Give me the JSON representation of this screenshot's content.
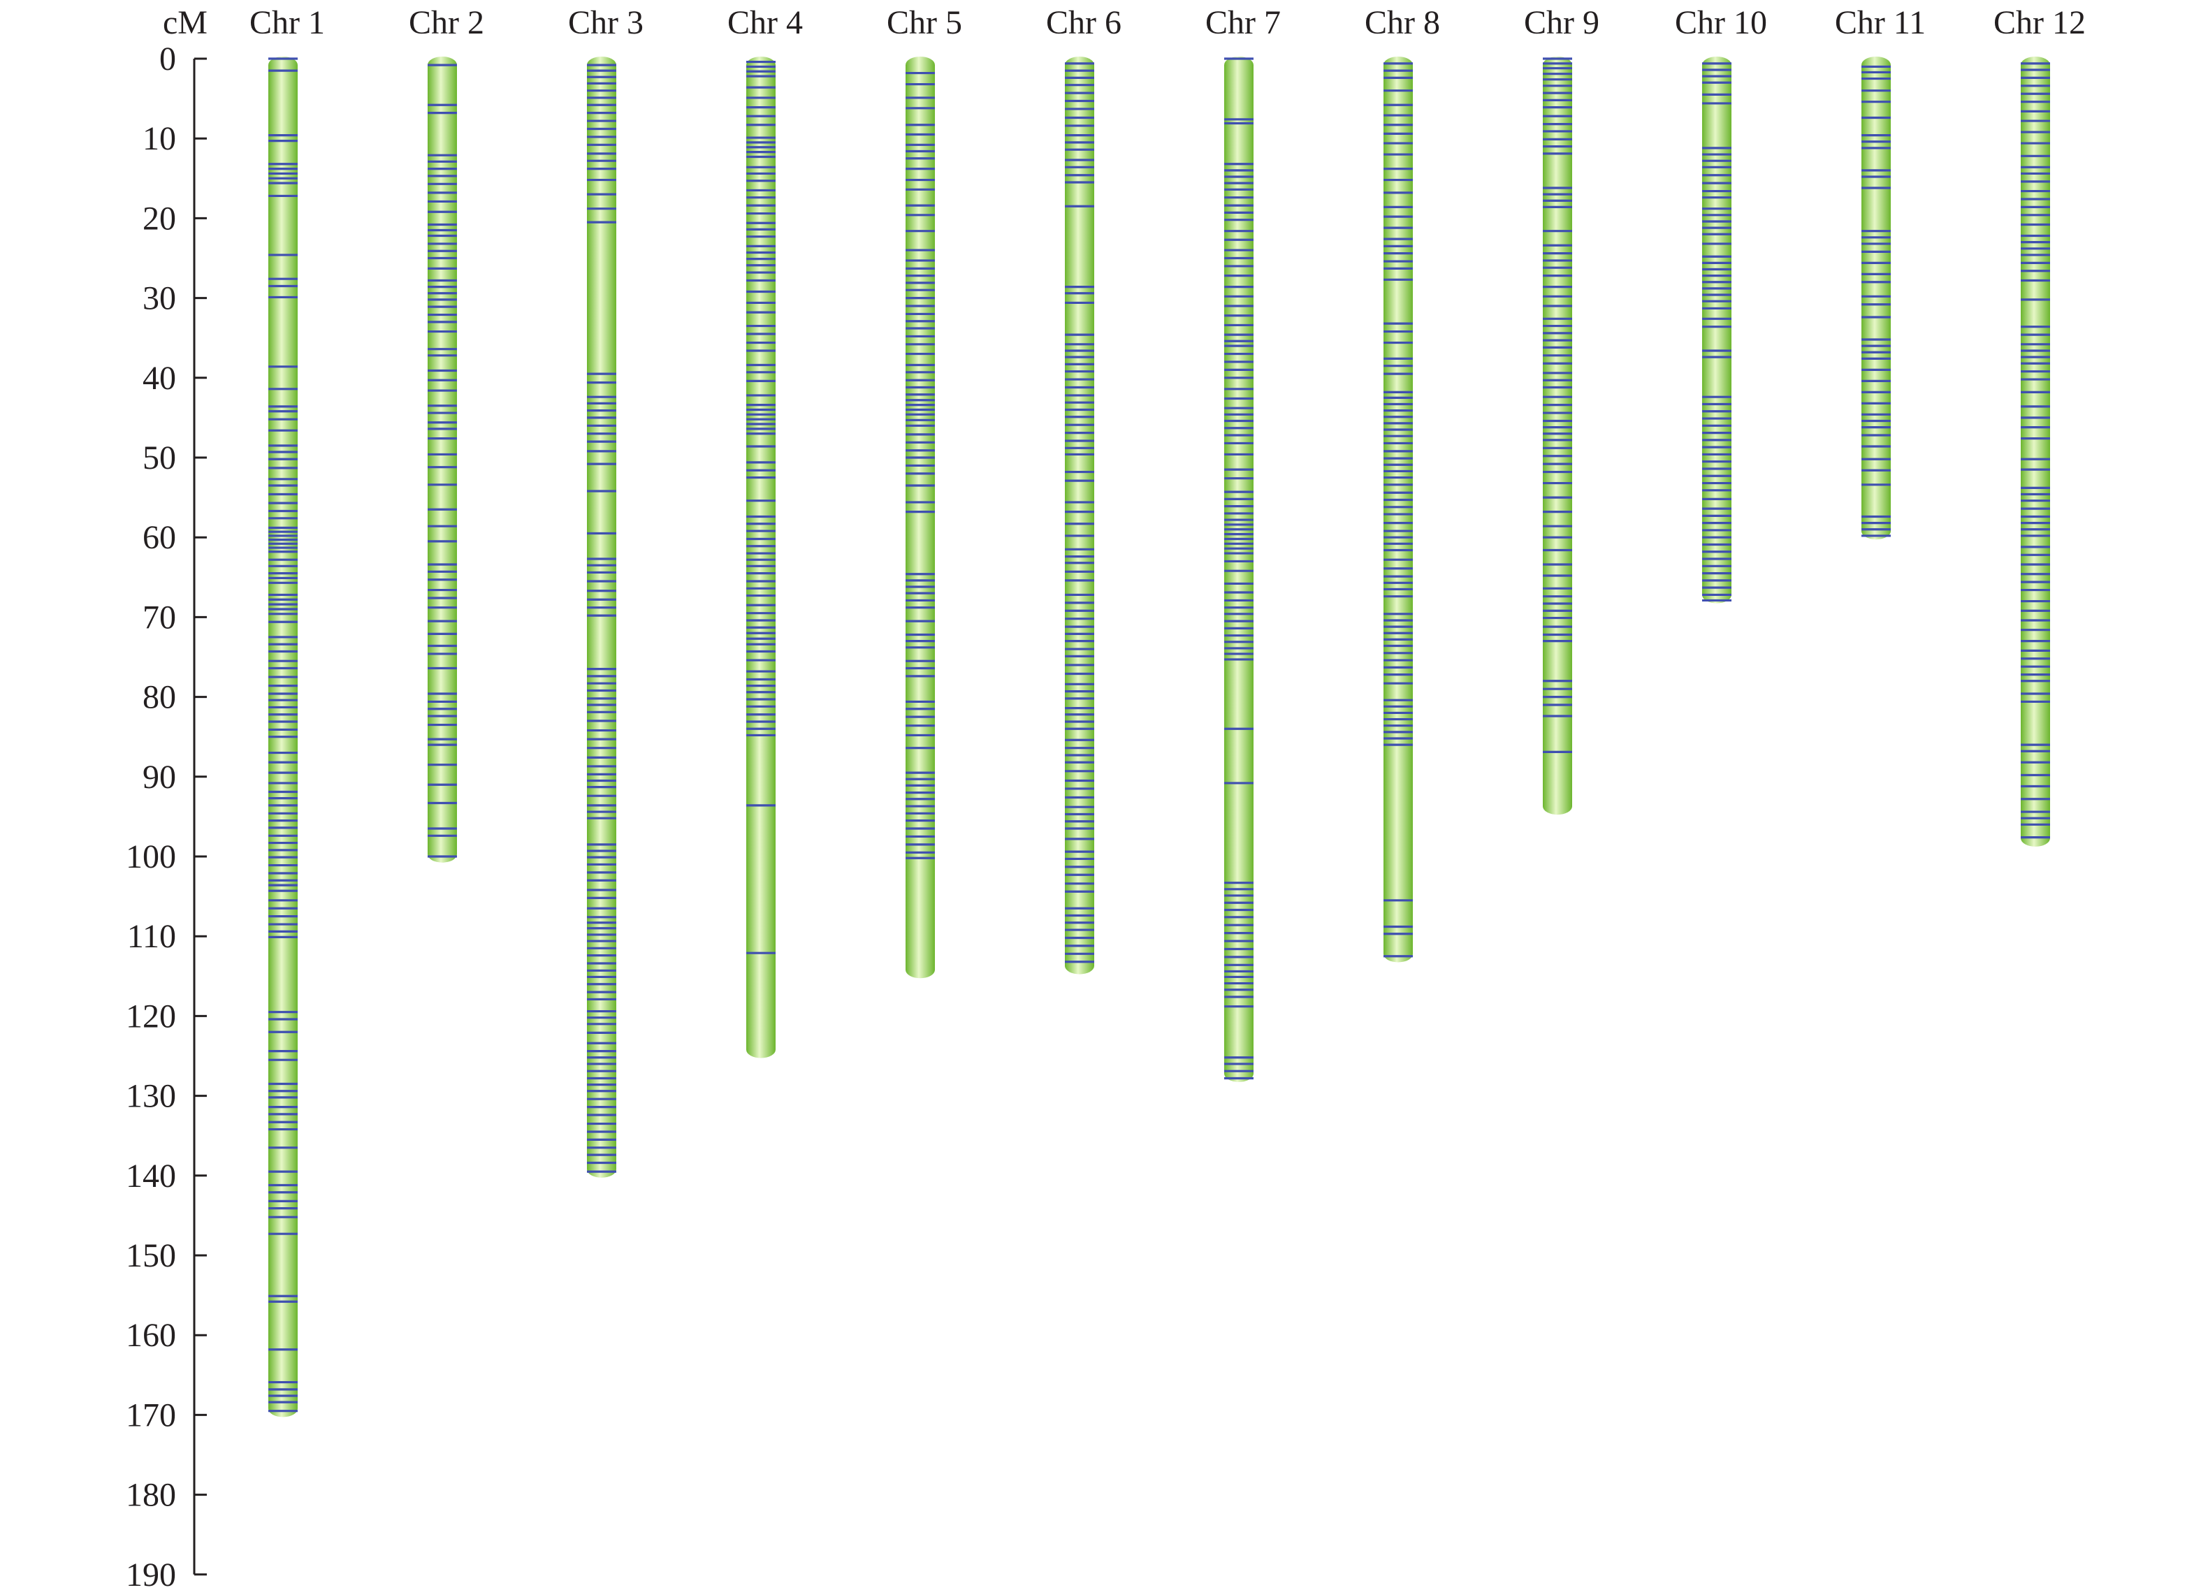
{
  "chart_data": {
    "type": "linkage-map",
    "axis": {
      "unit_label": "cM",
      "range": [
        0,
        190
      ],
      "ticks": [
        0,
        10,
        20,
        30,
        40,
        50,
        60,
        70,
        80,
        90,
        100,
        110,
        120,
        130,
        140,
        150,
        160,
        170,
        180,
        190
      ]
    },
    "colors": {
      "chromosome": "#8fd14f",
      "chromosome_edge": "#6cb52e",
      "chromosome_highlight": "#e6f7c6",
      "marker": "#3f4fb0",
      "axis": "#231f20"
    },
    "chromosomes": [
      {
        "name": "Chr 1",
        "length": 170,
        "markers": [
          0,
          1.5,
          9.6,
          10.3,
          13.2,
          13.8,
          14.4,
          15.0,
          15.6,
          17.2,
          24.6,
          27.6,
          28.5,
          29.9,
          38.6,
          41.4,
          43.6,
          44.2,
          45.2,
          46.6,
          48.5,
          49.3,
          50.2,
          51.3,
          52.7,
          53.5,
          54.6,
          55.7,
          56.7,
          57.6,
          58.8,
          59.3,
          59.8,
          60.3,
          60.8,
          61.3,
          61.8,
          62.8,
          63.6,
          64.5,
          65.1,
          65.7,
          67.2,
          67.8,
          68.4,
          69.0,
          69.6,
          70.6,
          72.5,
          73.4,
          74.3,
          75.5,
          76.4,
          77.5,
          78.6,
          79.6,
          80.4,
          81.3,
          82.2,
          83.1,
          84.1,
          85.0,
          87.0,
          88.2,
          89.5,
          90.8,
          91.9,
          92.7,
          93.6,
          94.6,
          95.5,
          96.4,
          97.4,
          98.3,
          99.2,
          100.1,
          101.1,
          102.1,
          103.0,
          103.6,
          104.3,
          105.5,
          106.5,
          107.5,
          108.5,
          109.4,
          110.1,
          119.5,
          120.4,
          122.0,
          124.4,
          125.5,
          128.5,
          129.4,
          130.2,
          131.4,
          132.3,
          133.3,
          134.2,
          136.5,
          139.5,
          141.2,
          142.1,
          143.2,
          144.1,
          145.2,
          147.3,
          155.1,
          155.8,
          161.8,
          165.9,
          166.8,
          167.6,
          168.4,
          169.5
        ]
      },
      {
        "name": "Chr 2",
        "length": 100.5,
        "markers": [
          0.8,
          5.8,
          6.8,
          12.1,
          12.9,
          13.8,
          14.7,
          15.7,
          16.8,
          17.9,
          19.2,
          20.8,
          21.5,
          22.2,
          23.2,
          24.1,
          25.0,
          26.3,
          27.8,
          28.6,
          29.4,
          30.2,
          31.1,
          32.1,
          33.0,
          34.2,
          36.4,
          37.2,
          39.1,
          40.3,
          41.6,
          43.5,
          44.4,
          45.6,
          46.4,
          47.6,
          49.6,
          51.2,
          53.4,
          56.5,
          58.6,
          60.5,
          63.4,
          64.3,
          65.3,
          66.6,
          67.6,
          68.8,
          70.5,
          72.1,
          73.6,
          74.6,
          76.4,
          79.6,
          80.6,
          81.5,
          82.4,
          83.5,
          85.3,
          86.0,
          88.5,
          91.0,
          93.3,
          96.5,
          97.4,
          100.0
        ]
      },
      {
        "name": "Chr 3",
        "length": 140,
        "markers": [
          0.8,
          1.5,
          2.3,
          3.1,
          4.0,
          4.9,
          5.8,
          6.8,
          7.8,
          8.8,
          9.8,
          10.8,
          11.9,
          12.8,
          13.8,
          15.2,
          17.0,
          18.8,
          20.5,
          39.5,
          40.6,
          42.4,
          43.2,
          44.1,
          45.0,
          46.0,
          47.0,
          48.0,
          49.2,
          50.8,
          54.2,
          59.5,
          62.7,
          63.5,
          64.4,
          65.5,
          66.7,
          67.8,
          68.8,
          69.8,
          76.5,
          77.4,
          78.3,
          79.2,
          80.2,
          81.0,
          81.9,
          83.0,
          84.2,
          85.3,
          86.4,
          87.6,
          88.7,
          89.7,
          90.5,
          91.3,
          92.4,
          93.6,
          94.4,
          95.2,
          98.5,
          99.3,
          100.1,
          101.0,
          102.0,
          103.0,
          104.2,
          105.2,
          106.5,
          107.6,
          108.3,
          109.0,
          109.8,
          110.6,
          111.5,
          112.4,
          113.4,
          114.3,
          115.1,
          116.0,
          117.0,
          117.9,
          119.4,
          120.2,
          121.0,
          122.1,
          123.4,
          124.4,
          125.2,
          126.0,
          126.9,
          127.8,
          128.6,
          129.4,
          130.4,
          131.4,
          132.4,
          133.5,
          134.5,
          135.5,
          136.5,
          137.4,
          138.4,
          139.5
        ]
      },
      {
        "name": "Chr 4",
        "length": 125,
        "markers": [
          0.4,
          1.0,
          1.6,
          2.2,
          3.6,
          4.9,
          6.1,
          7.2,
          8.3,
          9.9,
          10.5,
          11.1,
          11.7,
          12.3,
          13.6,
          14.4,
          15.3,
          16.5,
          17.4,
          18.4,
          19.4,
          20.6,
          21.4,
          22.3,
          23.5,
          24.3,
          25.1,
          25.9,
          26.8,
          27.8,
          29.2,
          30.6,
          31.8,
          33.5,
          34.5,
          35.6,
          36.6,
          38.4,
          39.3,
          40.4,
          42.2,
          43.4,
          44.0,
          44.6,
          45.2,
          45.8,
          46.4,
          47.0,
          48.6,
          50.6,
          51.6,
          52.5,
          55.4,
          57.4,
          58.3,
          59.2,
          60.2,
          61.1,
          62.0,
          62.8,
          63.6,
          64.5,
          65.5,
          66.4,
          67.3,
          68.5,
          69.5,
          70.4,
          71.3,
          72.0,
          72.7,
          73.4,
          74.3,
          75.4,
          76.8,
          77.8,
          78.6,
          79.4,
          80.3,
          81.2,
          82.2,
          83.1,
          84.0,
          84.8,
          93.6,
          112.1
        ]
      },
      {
        "name": "Chr 5",
        "length": 115,
        "markers": [
          1.8,
          3.2,
          4.9,
          6.2,
          8.3,
          9.5,
          10.8,
          11.6,
          12.5,
          13.8,
          15.2,
          16.4,
          18.4,
          19.6,
          21.6,
          24.0,
          25.3,
          26.3,
          27.2,
          28.1,
          29.0,
          30.0,
          31.0,
          32.0,
          32.9,
          33.8,
          34.8,
          35.8,
          37.0,
          38.4,
          39.3,
          40.3,
          41.2,
          42.1,
          42.8,
          43.4,
          44.0,
          44.6,
          45.3,
          46.0,
          47.1,
          48.1,
          49.1,
          50.0,
          51.0,
          52.0,
          53.5,
          55.6,
          56.8,
          64.6,
          65.4,
          66.2,
          67.0,
          67.9,
          68.8,
          70.5,
          72.2,
          73.0,
          73.8,
          75.5,
          76.4,
          77.4,
          80.6,
          81.5,
          82.5,
          83.6,
          84.8,
          86.4,
          89.5,
          90.3,
          91.1,
          92.0,
          92.8,
          93.7,
          94.6,
          95.5,
          96.5,
          97.5,
          98.5,
          99.5,
          100.2
        ]
      },
      {
        "name": "Chr 6",
        "length": 114.5,
        "markers": [
          0.6,
          1.5,
          2.4,
          3.3,
          4.3,
          5.3,
          6.3,
          7.4,
          8.4,
          9.6,
          10.5,
          11.4,
          12.7,
          13.6,
          14.6,
          15.5,
          18.5,
          28.6,
          29.4,
          30.6,
          34.6,
          35.8,
          36.6,
          37.4,
          38.3,
          39.2,
          40.2,
          41.2,
          42.2,
          43.1,
          44.0,
          44.9,
          45.9,
          46.9,
          47.9,
          48.8,
          49.6,
          51.8,
          52.9,
          55.6,
          56.8,
          58.3,
          59.8,
          61.5,
          62.4,
          63.2,
          64.3,
          65.4,
          67.2,
          68.2,
          69.2,
          70.2,
          71.2,
          72.1,
          73.0,
          74.0,
          74.9,
          76.0,
          77.1,
          78.4,
          79.3,
          80.2,
          81.4,
          82.2,
          83.1,
          84.0,
          85.4,
          86.4,
          87.3,
          88.2,
          89.3,
          90.5,
          91.5,
          92.6,
          93.8,
          94.7,
          95.6,
          96.5,
          97.8,
          99.4,
          100.3,
          101.3,
          102.3,
          103.4,
          104.4,
          106.5,
          107.4,
          108.3,
          109.2,
          110.2,
          111.2,
          112.2,
          113.2
        ]
      },
      {
        "name": "Chr 7",
        "length": 128,
        "markers": [
          0,
          7.6,
          8.1,
          13.2,
          14.0,
          14.8,
          15.6,
          16.4,
          17.4,
          18.4,
          19.3,
          20.2,
          21.6,
          22.7,
          24.0,
          25.0,
          26.0,
          27.2,
          28.6,
          29.8,
          31.0,
          32.2,
          33.4,
          34.6,
          35.4,
          36.0,
          37.0,
          38.0,
          39.0,
          40.0,
          41.4,
          42.6,
          43.8,
          44.6,
          45.4,
          46.3,
          47.2,
          48.2,
          49.6,
          51.5,
          52.6,
          54.3,
          55.2,
          56.1,
          57.0,
          57.8,
          58.4,
          59.0,
          59.6,
          60.2,
          60.8,
          61.4,
          62.0,
          63.0,
          64.2,
          65.8,
          66.9,
          67.9,
          68.8,
          69.6,
          70.5,
          71.4,
          72.3,
          73.1,
          73.9,
          74.6,
          75.3,
          84.0,
          90.8,
          103.3,
          104.1,
          104.9,
          105.8,
          106.7,
          107.6,
          108.6,
          109.6,
          110.6,
          111.6,
          112.6,
          113.6,
          114.4,
          115.1,
          115.9,
          116.7,
          117.6,
          118.8,
          125.2,
          126.0,
          126.9,
          127.8
        ]
      },
      {
        "name": "Chr 8",
        "length": 113,
        "markers": [
          0.6,
          1.5,
          2.4,
          4.0,
          5.8,
          7.1,
          8.3,
          9.4,
          10.6,
          12.0,
          13.8,
          15.2,
          16.8,
          18.6,
          19.8,
          21.2,
          22.6,
          23.5,
          24.4,
          25.4,
          26.3,
          27.7,
          33.2,
          34.2,
          35.6,
          37.6,
          38.5,
          39.5,
          41.8,
          42.5,
          43.3,
          44.1,
          44.9,
          45.7,
          46.5,
          47.3,
          48.2,
          49.2,
          50.1,
          50.9,
          51.7,
          52.5,
          53.4,
          54.4,
          55.3,
          56.2,
          57.1,
          58.2,
          59.2,
          60.0,
          60.8,
          61.6,
          62.8,
          63.9,
          64.9,
          65.7,
          66.5,
          67.4,
          69.6,
          70.4,
          71.2,
          72.0,
          72.8,
          73.6,
          74.5,
          75.4,
          76.3,
          77.2,
          78.3,
          80.4,
          81.2,
          82.0,
          82.8,
          83.6,
          84.4,
          85.2,
          86.0,
          105.5,
          108.8,
          109.7,
          112.5
        ]
      },
      {
        "name": "Chr 9",
        "length": 94.5,
        "markers": [
          0,
          0.6,
          1.2,
          1.9,
          2.6,
          3.4,
          4.3,
          5.2,
          6.1,
          7.2,
          8.2,
          9.1,
          10.1,
          11.0,
          11.9,
          16.2,
          17.0,
          17.8,
          18.6,
          21.6,
          23.4,
          24.4,
          25.3,
          26.2,
          27.2,
          28.6,
          29.8,
          31.0,
          32.6,
          33.5,
          34.4,
          35.3,
          36.2,
          37.2,
          38.2,
          39.4,
          40.3,
          41.2,
          42.4,
          43.4,
          44.4,
          45.4,
          46.2,
          47.0,
          47.8,
          48.8,
          49.8,
          50.8,
          51.8,
          53.2,
          55.0,
          56.8,
          58.6,
          60.0,
          61.6,
          63.4,
          64.8,
          66.4,
          67.4,
          68.3,
          69.2,
          70.1,
          71.2,
          72.2,
          73.0,
          78.0,
          79.0,
          80.0,
          81.0,
          82.4,
          86.9
        ]
      },
      {
        "name": "Chr 10",
        "length": 68,
        "markers": [
          0.6,
          1.4,
          2.2,
          3.0,
          4.5,
          5.6,
          11.2,
          12.0,
          12.8,
          13.6,
          14.6,
          15.6,
          16.6,
          17.4,
          18.8,
          19.6,
          20.4,
          21.2,
          22.0,
          23.2,
          24.8,
          25.6,
          26.4,
          27.2,
          28.0,
          28.8,
          29.6,
          30.4,
          31.3,
          32.6,
          33.6,
          36.6,
          37.4,
          42.4,
          43.3,
          44.2,
          45.1,
          46.0,
          46.9,
          47.8,
          48.7,
          49.6,
          50.5,
          51.4,
          52.3,
          53.2,
          54.1,
          55.2,
          56.4,
          57.3,
          58.2,
          59.1,
          60.0,
          60.9,
          61.8,
          62.7,
          63.6,
          64.5,
          65.4,
          66.3,
          67.2,
          67.9
        ]
      },
      {
        "name": "Chr 11",
        "length": 60,
        "markers": [
          1.0,
          1.7,
          2.5,
          4.0,
          5.4,
          7.4,
          9.6,
          10.4,
          11.2,
          14.0,
          14.8,
          16.2,
          21.6,
          22.4,
          23.2,
          24.2,
          25.6,
          27.0,
          28.0,
          29.8,
          30.8,
          32.4,
          35.2,
          36.0,
          36.8,
          37.6,
          39.0,
          40.4,
          41.8,
          43.2,
          44.6,
          45.4,
          46.2,
          47.2,
          48.6,
          50.2,
          51.6,
          53.4,
          57.4,
          58.2,
          59.0,
          59.8
        ]
      },
      {
        "name": "Chr 12",
        "length": 98.5,
        "markers": [
          0.6,
          1.4,
          2.4,
          3.4,
          4.4,
          5.4,
          6.6,
          7.8,
          9.2,
          10.6,
          12.2,
          13.6,
          14.4,
          15.4,
          16.6,
          17.6,
          18.6,
          19.6,
          20.8,
          22.2,
          23.0,
          23.8,
          24.6,
          25.6,
          26.6,
          27.8,
          30.2,
          33.6,
          34.6,
          35.8,
          36.6,
          37.4,
          38.2,
          39.2,
          40.2,
          41.8,
          43.6,
          45.0,
          46.2,
          47.6,
          50.2,
          51.5,
          53.8,
          54.6,
          55.4,
          56.4,
          57.4,
          58.2,
          59.0,
          59.8,
          61.2,
          62.2,
          63.4,
          64.6,
          65.6,
          66.6,
          68.0,
          69.2,
          70.4,
          71.6,
          73.0,
          74.2,
          75.2,
          76.2,
          77.2,
          78.0,
          79.6,
          80.6,
          86.0,
          86.8,
          88.2,
          89.8,
          91.2,
          92.8,
          94.4,
          95.2,
          96.0,
          97.6
        ]
      }
    ]
  }
}
